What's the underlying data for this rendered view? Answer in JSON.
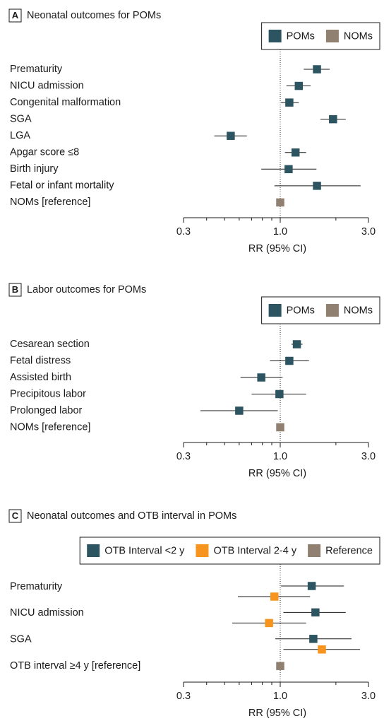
{
  "chart_data": [
    {
      "type": "forest",
      "panel": "A",
      "title": "Neonatal outcomes for POMs",
      "xlabel": "RR (95% CI)",
      "log_x": true,
      "xlim": [
        0.3,
        3.0
      ],
      "xticks": [
        0.3,
        {
          "value": 1,
          "label": "1.0"
        },
        {
          "value": 3,
          "label": "3.0"
        }
      ],
      "minor_xticks": [
        0.4,
        0.5,
        0.6,
        0.7,
        0.8,
        0.9,
        2
      ],
      "reference_line": 1,
      "legend": "upper right",
      "categories": [
        "Prematurity",
        "NICU admission",
        "Congenital malformation",
        "SGA",
        "LGA",
        "Apgar score ≤8",
        "Birth injury",
        "Fetal or infant mortality",
        "NOMs [reference]"
      ],
      "series": [
        {
          "name": "POMs",
          "color": "#2d5461",
          "values": [
            1.58,
            1.26,
            1.12,
            1.93,
            0.54,
            1.21,
            1.11,
            1.58,
            null
          ],
          "lower": [
            1.34,
            1.08,
            1.01,
            1.65,
            0.44,
            1.06,
            0.79,
            0.93,
            null
          ],
          "upper": [
            1.85,
            1.46,
            1.26,
            2.26,
            0.66,
            1.38,
            1.57,
            2.72,
            null
          ]
        },
        {
          "name": "NOMs",
          "color": "#8f8071",
          "values": [
            null,
            null,
            null,
            null,
            null,
            null,
            null,
            null,
            1.0
          ],
          "lower": [
            null,
            null,
            null,
            null,
            null,
            null,
            null,
            null,
            null
          ],
          "upper": [
            null,
            null,
            null,
            null,
            null,
            null,
            null,
            null,
            null
          ]
        }
      ]
    },
    {
      "type": "forest",
      "panel": "B",
      "title": "Labor outcomes for POMs",
      "xlabel": "RR (95% CI)",
      "log_x": true,
      "xlim": [
        0.3,
        3.0
      ],
      "xticks": [
        0.3,
        {
          "value": 1,
          "label": "1.0"
        },
        {
          "value": 3,
          "label": "3.0"
        }
      ],
      "minor_xticks": [
        0.4,
        0.5,
        0.6,
        0.7,
        0.8,
        0.9,
        2
      ],
      "reference_line": 1,
      "legend": "upper right",
      "categories": [
        "Cesarean section",
        "Fetal distress",
        "Assisted birth",
        "Precipitous labor",
        "Prolonged labor",
        "NOMs [reference]"
      ],
      "series": [
        {
          "name": "POMs",
          "color": "#2d5461",
          "values": [
            1.23,
            1.12,
            0.79,
            0.99,
            0.6,
            null
          ],
          "lower": [
            1.15,
            0.88,
            0.61,
            0.7,
            0.37,
            null
          ],
          "upper": [
            1.32,
            1.43,
            1.03,
            1.38,
            0.97,
            null
          ]
        },
        {
          "name": "NOMs",
          "color": "#8f8071",
          "values": [
            null,
            null,
            null,
            null,
            null,
            1.0
          ],
          "lower": [
            null,
            null,
            null,
            null,
            null,
            null
          ],
          "upper": [
            null,
            null,
            null,
            null,
            null,
            null
          ]
        }
      ]
    },
    {
      "type": "forest",
      "panel": "C",
      "title": "Neonatal outcomes and OTB interval in POMs",
      "xlabel": "RR (95% CI)",
      "log_x": true,
      "xlim": [
        0.3,
        3.0
      ],
      "xticks": [
        0.3,
        {
          "value": 1,
          "label": "1.0"
        },
        {
          "value": 3,
          "label": "3.0"
        }
      ],
      "minor_xticks": [
        0.4,
        0.5,
        0.6,
        0.7,
        0.8,
        0.9,
        2
      ],
      "reference_line": 1,
      "legend": "upper right",
      "categories": [
        "Prematurity",
        "NICU admission",
        "SGA",
        "OTB interval ≥4 y [reference]"
      ],
      "series": [
        {
          "name": "OTB Interval <2 y",
          "color": "#2d5461",
          "values": [
            1.48,
            1.55,
            1.51,
            null
          ],
          "lower": [
            1.01,
            1.04,
            0.94,
            null
          ],
          "upper": [
            2.21,
            2.26,
            2.43,
            null
          ]
        },
        {
          "name": "OTB Interval 2-4 y",
          "color": "#f7941d",
          "values": [
            0.93,
            0.87,
            1.68,
            null
          ],
          "lower": [
            0.59,
            0.55,
            1.04,
            null
          ],
          "upper": [
            1.45,
            1.38,
            2.7,
            null
          ]
        },
        {
          "name": "Reference",
          "color": "#8f8071",
          "values": [
            null,
            null,
            null,
            1.0
          ],
          "lower": [
            null,
            null,
            null,
            null
          ],
          "upper": [
            null,
            null,
            null,
            null
          ]
        }
      ]
    }
  ]
}
